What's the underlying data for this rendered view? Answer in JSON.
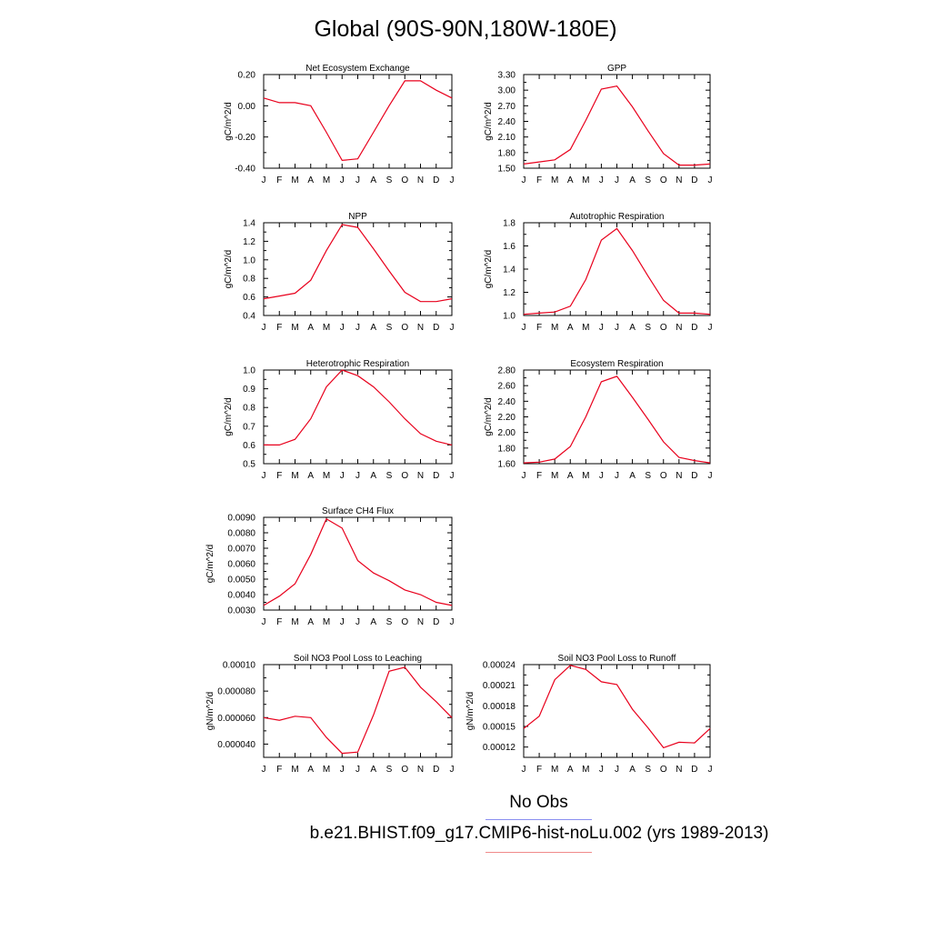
{
  "figure": {
    "title": "Global (90S-90N,180W-180E)",
    "legend": [
      {
        "label": "No Obs",
        "color": "#8a8ef0"
      },
      {
        "label": "b.e21.BHIST.f09_g17.CMIP6-hist-noLu.002 (yrs 1989-2013)",
        "color": "#f08a8a"
      }
    ],
    "line_color": "#e8001c"
  },
  "chart_data": [
    {
      "type": "line",
      "title": "Net Ecosystem Exchange",
      "ylabel": "gC/m^2/d",
      "categories": [
        "J",
        "F",
        "M",
        "A",
        "M",
        "J",
        "J",
        "A",
        "S",
        "O",
        "N",
        "D",
        "J"
      ],
      "values": [
        0.05,
        0.02,
        0.02,
        0.0,
        -0.17,
        -0.35,
        -0.34,
        -0.17,
        0.0,
        0.16,
        0.16,
        0.1,
        0.05
      ],
      "ylim": [
        -0.4,
        0.2
      ],
      "yticks": [
        -0.4,
        -0.2,
        0.0,
        0.2
      ],
      "ytick_labels": [
        "-0.40",
        "-0.20",
        "0.00",
        "0.20"
      ]
    },
    {
      "type": "line",
      "title": "GPP",
      "ylabel": "gC/m^2/d",
      "categories": [
        "J",
        "F",
        "M",
        "A",
        "M",
        "J",
        "J",
        "A",
        "S",
        "O",
        "N",
        "D",
        "J"
      ],
      "values": [
        1.58,
        1.62,
        1.66,
        1.86,
        2.42,
        3.02,
        3.08,
        2.68,
        2.22,
        1.78,
        1.56,
        1.56,
        1.58
      ],
      "ylim": [
        1.5,
        3.3
      ],
      "yticks": [
        1.5,
        1.8,
        2.1,
        2.4,
        2.7,
        3.0,
        3.3
      ],
      "ytick_labels": [
        "1.50",
        "1.80",
        "2.10",
        "2.40",
        "2.70",
        "3.00",
        "3.30"
      ]
    },
    {
      "type": "line",
      "title": "NPP",
      "ylabel": "gC/m^2/d",
      "categories": [
        "J",
        "F",
        "M",
        "A",
        "M",
        "J",
        "J",
        "A",
        "S",
        "O",
        "N",
        "D",
        "J"
      ],
      "values": [
        0.58,
        0.61,
        0.64,
        0.78,
        1.1,
        1.38,
        1.35,
        1.12,
        0.88,
        0.65,
        0.55,
        0.55,
        0.58
      ],
      "ylim": [
        0.4,
        1.4
      ],
      "yticks": [
        0.4,
        0.6,
        0.8,
        1.0,
        1.2,
        1.4
      ],
      "ytick_labels": [
        "0.4",
        "0.6",
        "0.8",
        "1.0",
        "1.2",
        "1.4"
      ]
    },
    {
      "type": "line",
      "title": "Autotrophic Respiration",
      "ylabel": "gC/m^2/d",
      "categories": [
        "J",
        "F",
        "M",
        "A",
        "M",
        "J",
        "J",
        "A",
        "S",
        "O",
        "N",
        "D",
        "J"
      ],
      "values": [
        1.01,
        1.02,
        1.03,
        1.08,
        1.31,
        1.65,
        1.75,
        1.56,
        1.34,
        1.13,
        1.02,
        1.02,
        1.01
      ],
      "ylim": [
        1.0,
        1.8
      ],
      "yticks": [
        1.0,
        1.2,
        1.4,
        1.6,
        1.8
      ],
      "ytick_labels": [
        "1.0",
        "1.2",
        "1.4",
        "1.6",
        "1.8"
      ]
    },
    {
      "type": "line",
      "title": "Heterotrophic Respiration",
      "ylabel": "gC/m^2/d",
      "categories": [
        "J",
        "F",
        "M",
        "A",
        "M",
        "J",
        "J",
        "A",
        "S",
        "O",
        "N",
        "D",
        "J"
      ],
      "values": [
        0.6,
        0.6,
        0.63,
        0.74,
        0.91,
        1.0,
        0.97,
        0.91,
        0.83,
        0.74,
        0.66,
        0.62,
        0.6
      ],
      "ylim": [
        0.5,
        1.0
      ],
      "yticks": [
        0.5,
        0.6,
        0.7,
        0.8,
        0.9,
        1.0
      ],
      "ytick_labels": [
        "0.5",
        "0.6",
        "0.7",
        "0.8",
        "0.9",
        "1.0"
      ]
    },
    {
      "type": "line",
      "title": "Ecosystem Respiration",
      "ylabel": "gC/m^2/d",
      "categories": [
        "J",
        "F",
        "M",
        "A",
        "M",
        "J",
        "J",
        "A",
        "S",
        "O",
        "N",
        "D",
        "J"
      ],
      "values": [
        1.61,
        1.62,
        1.66,
        1.82,
        2.2,
        2.65,
        2.72,
        2.45,
        2.17,
        1.88,
        1.68,
        1.64,
        1.61
      ],
      "ylim": [
        1.6,
        2.8
      ],
      "yticks": [
        1.6,
        1.8,
        2.0,
        2.2,
        2.4,
        2.6,
        2.8
      ],
      "ytick_labels": [
        "1.60",
        "1.80",
        "2.00",
        "2.20",
        "2.40",
        "2.60",
        "2.80"
      ]
    },
    {
      "type": "line",
      "title": "Surface CH4 Flux",
      "ylabel": "gC/m^2/d",
      "categories": [
        "J",
        "F",
        "M",
        "A",
        "M",
        "J",
        "J",
        "A",
        "S",
        "O",
        "N",
        "D",
        "J"
      ],
      "values": [
        0.0033,
        0.0039,
        0.0047,
        0.0066,
        0.0089,
        0.0083,
        0.0062,
        0.0054,
        0.0049,
        0.0043,
        0.004,
        0.0035,
        0.0033
      ],
      "ylim": [
        0.003,
        0.009
      ],
      "yticks": [
        0.003,
        0.004,
        0.005,
        0.006,
        0.007,
        0.008,
        0.009
      ],
      "ytick_labels": [
        "0.0030",
        "0.0040",
        "0.0050",
        "0.0060",
        "0.0070",
        "0.0080",
        "0.0090"
      ]
    },
    {
      "type": "line",
      "title": "Soil NO3 Pool Loss to Leaching",
      "ylabel": "gN/m^2/d",
      "categories": [
        "J",
        "F",
        "M",
        "A",
        "M",
        "J",
        "J",
        "A",
        "S",
        "O",
        "N",
        "D",
        "J"
      ],
      "values": [
        6e-05,
        5.8e-05,
        6.1e-05,
        6e-05,
        4.5e-05,
        3.3e-05,
        3.4e-05,
        6.2e-05,
        9.5e-05,
        9.8e-05,
        8.3e-05,
        7.2e-05,
        6e-05
      ],
      "ylim": [
        3e-05,
        0.0001
      ],
      "yticks": [
        4e-05,
        6e-05,
        8e-05,
        0.0001
      ],
      "ytick_labels": [
        "0.000040",
        "0.000060",
        "0.000080",
        "0.00010"
      ]
    },
    {
      "type": "line",
      "title": "Soil NO3 Pool Loss to Runoff",
      "ylabel": "gN/m^2/d",
      "categories": [
        "J",
        "F",
        "M",
        "A",
        "M",
        "J",
        "J",
        "A",
        "S",
        "O",
        "N",
        "D",
        "J"
      ],
      "values": [
        0.000147,
        0.000165,
        0.000218,
        0.000239,
        0.000233,
        0.000215,
        0.000211,
        0.000175,
        0.000148,
        0.000119,
        0.000127,
        0.000126,
        0.000147
      ],
      "ylim": [
        0.000105,
        0.00024
      ],
      "yticks": [
        0.00012,
        0.00015,
        0.00018,
        0.00021,
        0.00024
      ],
      "ytick_labels": [
        "0.00012",
        "0.00015",
        "0.00018",
        "0.00021",
        "0.00024"
      ]
    }
  ]
}
